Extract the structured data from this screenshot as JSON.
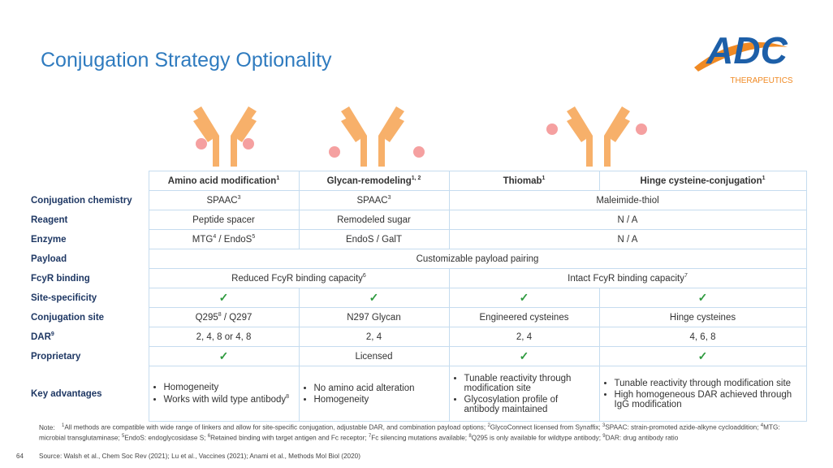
{
  "header": {
    "title": "Conjugation Strategy Optionality",
    "logo": {
      "name": "ADC",
      "sub": "THERAPEUTICS"
    }
  },
  "table": {
    "columns": [
      [
        "Amino acid modification",
        "1"
      ],
      [
        "Glycan-remodeling",
        "1, 2"
      ],
      [
        "Thiomab",
        "1"
      ],
      [
        "Hinge cysteine-conjugation",
        "1"
      ]
    ],
    "rows": [
      {
        "label": [
          "Conjugation chemistry"
        ],
        "cells": [
          {
            "text": [
              "SPAAC",
              "3"
            ]
          },
          {
            "text": [
              "SPAAC",
              "3"
            ]
          },
          {
            "text": [
              "Maleimide-thiol"
            ]
          }
        ]
      },
      {
        "label": [
          "Reagent"
        ],
        "cells": [
          {
            "text": [
              "Peptide spacer"
            ]
          },
          {
            "text": [
              "Remodeled sugar"
            ]
          },
          {
            "text": [
              "N / A"
            ]
          }
        ]
      },
      {
        "label": [
          "Enzyme"
        ],
        "cells": [
          {
            "text": [
              "MTG",
              "4",
              " / EndoS",
              "5"
            ]
          },
          {
            "text": [
              "EndoS / GalT"
            ]
          },
          {
            "text": [
              "N / A"
            ]
          }
        ]
      },
      {
        "label": [
          "Payload"
        ],
        "cells": [
          {
            "text": [
              "Customizable payload pairing"
            ]
          }
        ]
      },
      {
        "label": [
          "FcyR binding"
        ],
        "cells": [
          {
            "text": [
              "Reduced FcyR binding capacity",
              "6"
            ]
          },
          {
            "text": [
              "Intact FcyR binding capacity",
              "7"
            ]
          }
        ]
      },
      {
        "label": [
          "Site-specificity"
        ],
        "cells": [
          {
            "check": "✓"
          },
          {
            "check": "✓"
          },
          {
            "check": "✓"
          },
          {
            "check": "✓"
          }
        ]
      },
      {
        "label": [
          "Conjugation site"
        ],
        "cells": [
          {
            "text": [
              "Q295",
              "8",
              " / Q297"
            ]
          },
          {
            "text": [
              "N297 Glycan"
            ]
          },
          {
            "text": [
              "Engineered cysteines"
            ]
          },
          {
            "text": [
              "Hinge cysteines"
            ]
          }
        ]
      },
      {
        "label": [
          "DAR",
          "9"
        ],
        "cells": [
          {
            "text": [
              "2, 4, 8 or 4, 8"
            ]
          },
          {
            "text": [
              "2, 4"
            ]
          },
          {
            "text": [
              "2, 4"
            ]
          },
          {
            "text": [
              "4, 6, 8"
            ]
          }
        ]
      },
      {
        "label": [
          "Proprietary"
        ],
        "cells": [
          {
            "check": "✓"
          },
          {
            "text": [
              "Licensed"
            ]
          },
          {
            "check": "✓"
          },
          {
            "check": "✓"
          }
        ]
      },
      {
        "label": [
          "Key advantages"
        ],
        "cells": [
          {
            "items": [
              [
                "Homogeneity"
              ],
              [
                "Works with wild type antibody",
                "8"
              ]
            ]
          },
          {
            "items": [
              [
                "No amino acid alteration"
              ],
              [
                "Homogeneity"
              ]
            ]
          },
          {
            "items": [
              [
                "Tunable reactivity through modification site"
              ],
              [
                "Glycosylation profile of antibody maintained"
              ]
            ]
          },
          {
            "items": [
              [
                "Tunable reactivity through modification site"
              ],
              [
                "High homogeneous DAR achieved through IgG modification"
              ]
            ]
          }
        ]
      }
    ]
  },
  "footer": {
    "note_label": "Note:",
    "notes": [
      {
        "n": "1",
        "text": "All methods are compatible with wide range of linkers and allow for site-specific conjugation, adjustable DAR, and combination payload options;"
      },
      {
        "n": "2",
        "text": "GlycoConnect licensed from Synaffix;"
      },
      {
        "n": "3",
        "text": "SPAAC: strain-promoted azide-alkyne cycloaddition;"
      },
      {
        "n": "4",
        "text": "MTG: microbial transglutaminase;"
      },
      {
        "n": "5",
        "text": "EndoS: endoglycosidase S;"
      },
      {
        "n": "6",
        "text": "Retained binding with target antigen and Fc receptor;"
      },
      {
        "n": "7",
        "text": "Fc silencing mutations available;"
      },
      {
        "n": "8",
        "text": "Q295 is only available for wildtype antibody;"
      },
      {
        "n": "9",
        "text": "DAR: drug antibody ratio"
      }
    ],
    "page": "64",
    "source_label": "Source:",
    "source": "Walsh et al., Chem Soc Rev (2021); Lu et al., Vaccines (2021); Anami et al., Methods Mol Biol (2020)"
  }
}
